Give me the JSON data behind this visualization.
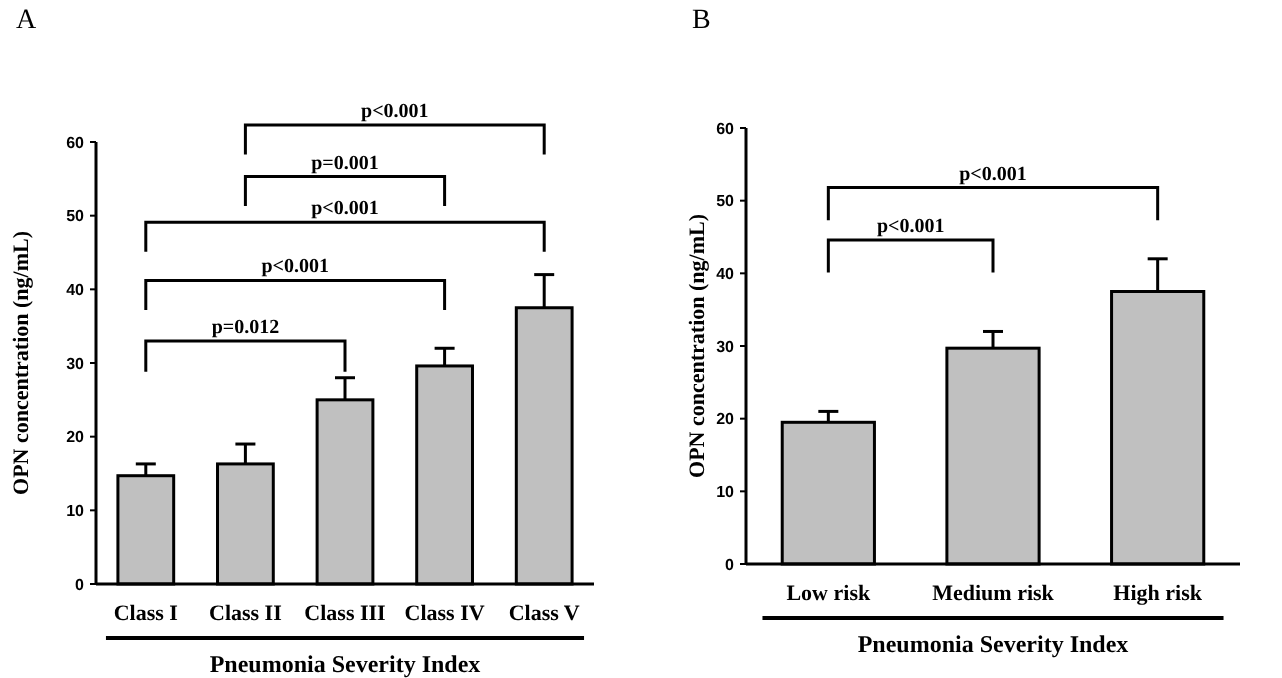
{
  "chart_data": [
    {
      "type": "bar",
      "title": "A",
      "xlabel": "Pneumonia Severity Index",
      "ylabel": "OPN concentration (ng/mL)",
      "categories": [
        "Class I",
        "Class II",
        "Class III",
        "Class IV",
        "Class V"
      ],
      "values": [
        14.7,
        16.3,
        25,
        29.6,
        37.5
      ],
      "errors": [
        1.6,
        2.7,
        3,
        2.4,
        4.5
      ],
      "color": "#c0c0c0",
      "ylim": [
        0,
        60
      ],
      "yticks": [
        0,
        10,
        20,
        30,
        40,
        50,
        60
      ],
      "annotations": [
        "p=0.012",
        "p<0.001",
        "p<0.001",
        "p=0.001",
        "p<0.001"
      ]
    },
    {
      "type": "bar",
      "title": "B",
      "xlabel": "Pneumonia Severity Index",
      "ylabel": "OPN concentration (ng/mL)",
      "categories": [
        "Low risk",
        "Medium risk",
        "High risk"
      ],
      "values": [
        19.5,
        29.7,
        37.5
      ],
      "errors": [
        1.5,
        2.3,
        4.5
      ],
      "color": "#c0c0c0",
      "ylim": [
        0,
        60
      ],
      "yticks": [
        0,
        10,
        20,
        30,
        40,
        50,
        60
      ],
      "annotations": [
        "p<0.001",
        "p<0.001"
      ]
    }
  ]
}
